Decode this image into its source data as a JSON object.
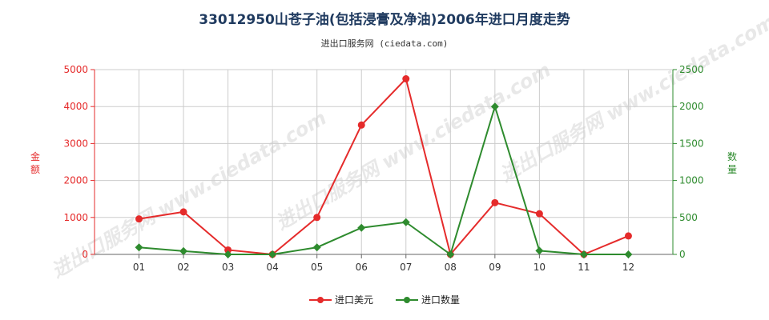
{
  "title": "33012950山苍子油(包括浸膏及净油)2006年进口月度走势",
  "subtitle": "进出口服务网 (ciedata.com)",
  "watermark": "进出口服务网 www.ciedata.com",
  "legend": {
    "series1": "进口美元",
    "series2": "进口数量"
  },
  "colors": {
    "series1": "#e52b2b",
    "series2": "#2e8b2e",
    "grid": "#cccccc"
  },
  "chart_data": {
    "type": "line",
    "categories": [
      "01",
      "02",
      "03",
      "04",
      "05",
      "06",
      "07",
      "08",
      "09",
      "10",
      "11",
      "12"
    ],
    "series": [
      {
        "name": "进口美元",
        "axis": "left",
        "values": [
          960,
          1150,
          120,
          0,
          1000,
          3500,
          4750,
          0,
          1400,
          1100,
          0,
          500
        ]
      },
      {
        "name": "进口数量",
        "axis": "right",
        "values": [
          95,
          45,
          0,
          0,
          95,
          360,
          435,
          0,
          2000,
          50,
          0,
          0
        ]
      }
    ],
    "ylabel_left": "金额",
    "ylabel_right": "数量",
    "ylim_left": [
      0,
      5000
    ],
    "ylim_right": [
      0,
      2500
    ],
    "yticks_left": [
      "0",
      "1000",
      "2000",
      "3000",
      "4000",
      "5000"
    ],
    "yticks_right": [
      "0",
      "500",
      "1000",
      "1500",
      "2000",
      "2500"
    ],
    "grid": true,
    "legend_position": "bottom"
  }
}
